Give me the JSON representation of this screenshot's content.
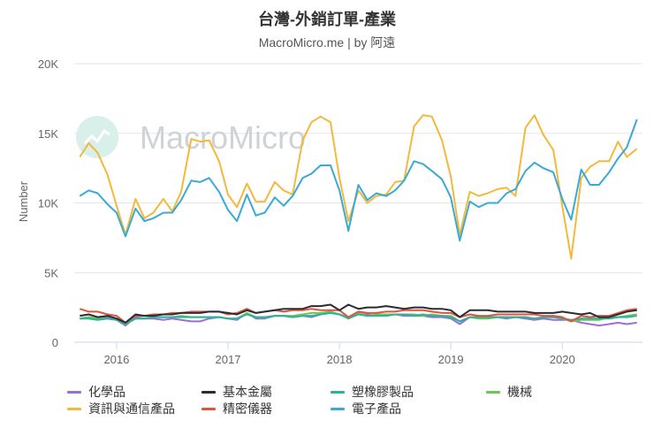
{
  "header": {
    "title": "台灣-外銷訂單-產業",
    "subtitle": "MacroMicro.me | by 阿遠"
  },
  "watermark": "MacroMicro",
  "chart_data": {
    "type": "line",
    "title": "台灣-外銷訂單-產業",
    "subtitle": "MacroMicro.me | by 阿遠",
    "xlabel": "",
    "ylabel": "Number",
    "ylim": [
      0,
      20000
    ],
    "yticks": [
      0,
      5000,
      10000,
      15000,
      20000
    ],
    "ytick_labels": [
      "0",
      "5K",
      "10K",
      "15K",
      "20K"
    ],
    "xlim": [
      2015.62,
      2020.72
    ],
    "xticks": [
      2016,
      2017,
      2018,
      2019,
      2020
    ],
    "xtick_labels": [
      "2016",
      "2017",
      "2018",
      "2019",
      "2020"
    ],
    "grid": "horizontal",
    "legend_position": "bottom",
    "x": [
      2015.67,
      2015.75,
      2015.83,
      2015.92,
      2016.0,
      2016.08,
      2016.17,
      2016.25,
      2016.33,
      2016.42,
      2016.5,
      2016.58,
      2016.67,
      2016.75,
      2016.83,
      2016.92,
      2017.0,
      2017.08,
      2017.17,
      2017.25,
      2017.33,
      2017.42,
      2017.5,
      2017.58,
      2017.67,
      2017.75,
      2017.83,
      2017.92,
      2018.0,
      2018.08,
      2018.17,
      2018.25,
      2018.33,
      2018.42,
      2018.5,
      2018.58,
      2018.67,
      2018.75,
      2018.83,
      2018.92,
      2019.0,
      2019.08,
      2019.17,
      2019.25,
      2019.33,
      2019.42,
      2019.5,
      2019.58,
      2019.67,
      2019.75,
      2019.83,
      2019.92,
      2020.0,
      2020.08,
      2020.17,
      2020.25,
      2020.33,
      2020.42,
      2020.5,
      2020.58,
      2020.67
    ],
    "series": [
      {
        "name": "化學品",
        "color": "#9c6fd6",
        "values": [
          1700,
          1800,
          1700,
          1800,
          1600,
          1200,
          1800,
          1700,
          1700,
          1600,
          1700,
          1600,
          1500,
          1500,
          1700,
          1800,
          1700,
          1600,
          2100,
          1700,
          1700,
          1900,
          1900,
          1800,
          1900,
          1800,
          2000,
          2100,
          2000,
          1800,
          2000,
          2000,
          1900,
          2000,
          2000,
          1900,
          1900,
          1900,
          1800,
          1800,
          1700,
          1300,
          1800,
          1800,
          1800,
          1800,
          1700,
          1800,
          1700,
          1600,
          1700,
          1600,
          1600,
          1600,
          1400,
          1300,
          1200,
          1300,
          1400,
          1300,
          1400
        ]
      },
      {
        "name": "資訊與通信產品",
        "color": "#f2b93b",
        "values": [
          13300,
          14300,
          13600,
          12000,
          9800,
          7700,
          10300,
          8900,
          9300,
          10300,
          9400,
          10800,
          14600,
          14400,
          14500,
          13000,
          10600,
          9700,
          11400,
          10100,
          10100,
          11500,
          10900,
          10600,
          14500,
          15800,
          16200,
          15800,
          11800,
          8700,
          10900,
          10000,
          10500,
          10600,
          11500,
          11600,
          15500,
          16300,
          16200,
          14500,
          11900,
          7700,
          10800,
          10500,
          10700,
          11000,
          11100,
          10500,
          15400,
          16300,
          14900,
          13800,
          9800,
          6000,
          11800,
          12600,
          13000,
          13000,
          14400,
          13300,
          13900
        ]
      },
      {
        "name": "基本金屬",
        "color": "#2b2b35",
        "values": [
          1900,
          2000,
          1800,
          1900,
          1700,
          1400,
          2000,
          1900,
          1900,
          2000,
          2000,
          2100,
          2100,
          2100,
          2200,
          2200,
          2100,
          2000,
          2300,
          2100,
          2200,
          2300,
          2400,
          2400,
          2400,
          2600,
          2600,
          2700,
          2300,
          2700,
          2400,
          2500,
          2500,
          2600,
          2500,
          2400,
          2500,
          2500,
          2400,
          2400,
          2300,
          1800,
          2300,
          2300,
          2300,
          2200,
          2200,
          2200,
          2200,
          2100,
          2100,
          2100,
          2200,
          2100,
          2000,
          2100,
          1800,
          1800,
          2000,
          2200,
          2300
        ]
      },
      {
        "name": "精密儀器",
        "color": "#e0533e",
        "values": [
          2400,
          2200,
          2200,
          2000,
          1900,
          1400,
          1900,
          1900,
          2000,
          2000,
          2100,
          2100,
          2200,
          2200,
          2200,
          2200,
          2000,
          2100,
          2400,
          2100,
          2200,
          2300,
          2200,
          2300,
          2300,
          2400,
          2300,
          2300,
          2300,
          1800,
          2200,
          2100,
          2100,
          2200,
          2200,
          2300,
          2300,
          2300,
          2200,
          2100,
          2100,
          1800,
          2000,
          1900,
          1900,
          2000,
          2000,
          2000,
          2000,
          2000,
          1900,
          1900,
          1800,
          1500,
          1900,
          1800,
          1900,
          1900,
          2100,
          2300,
          2400
        ]
      },
      {
        "name": "塑橡膠製品",
        "color": "#2bb39c",
        "values": [
          1700,
          1700,
          1600,
          1700,
          1600,
          1300,
          1700,
          1700,
          1800,
          1800,
          1800,
          1800,
          1800,
          1800,
          1800,
          1800,
          1700,
          1700,
          2000,
          1800,
          1800,
          1900,
          1900,
          1800,
          1900,
          1900,
          2000,
          2100,
          2000,
          1700,
          2000,
          1900,
          1900,
          1900,
          2000,
          2000,
          1900,
          2000,
          1900,
          1900,
          1800,
          1500,
          1800,
          1800,
          1800,
          1800,
          1800,
          1800,
          1800,
          1700,
          1800,
          1800,
          1700,
          1600,
          1700,
          1700,
          1700,
          1700,
          1800,
          1800,
          1900
        ]
      },
      {
        "name": "電子產品",
        "color": "#3aa9d8",
        "values": [
          10500,
          10900,
          10700,
          9900,
          9300,
          7600,
          9600,
          8700,
          8900,
          9300,
          9300,
          10200,
          11600,
          11500,
          11800,
          10800,
          9500,
          8700,
          10600,
          9100,
          9300,
          10400,
          9800,
          10500,
          11800,
          12100,
          12700,
          12700,
          10900,
          8000,
          11300,
          10200,
          10700,
          10500,
          10900,
          11600,
          13000,
          12800,
          12300,
          11700,
          10400,
          7300,
          10100,
          9700,
          10000,
          10000,
          10700,
          11000,
          12300,
          12900,
          12500,
          12200,
          10300,
          8800,
          12400,
          11300,
          11300,
          12200,
          13200,
          14000,
          16000
        ]
      }
    ]
  },
  "legend": [
    {
      "label": "化學品",
      "color": "#9c6fd6"
    },
    {
      "label": "基本金屬",
      "color": "#2b2b35"
    },
    {
      "label": "塑橡膠製品",
      "color": "#2bb39c"
    },
    {
      "label": "機械",
      "color": "#6cc94f"
    },
    {
      "label": "資訊與通信產品",
      "color": "#f2b93b"
    },
    {
      "label": "精密儀器",
      "color": "#e0533e"
    },
    {
      "label": "電子產品",
      "color": "#3aa9d8"
    }
  ],
  "machinery_series": {
    "name": "機械",
    "color": "#6cc94f",
    "values": [
      1700,
      1800,
      1700,
      1700,
      1600,
      1300,
      1700,
      1700,
      1800,
      1800,
      1800,
      1900,
      1800,
      1800,
      1800,
      1800,
      1700,
      1700,
      2100,
      1800,
      1800,
      1900,
      1900,
      1900,
      2000,
      2100,
      2100,
      2200,
      2000,
      1800,
      2100,
      1900,
      2000,
      2000,
      2000,
      2000,
      2000,
      1900,
      2000,
      1900,
      1900,
      1500,
      1800,
      1700,
      1700,
      1800,
      1800,
      1800,
      1800,
      1700,
      1800,
      1800,
      1700,
      1500,
      1600,
      1600,
      1600,
      1800,
      1800,
      1900,
      2000
    ]
  }
}
